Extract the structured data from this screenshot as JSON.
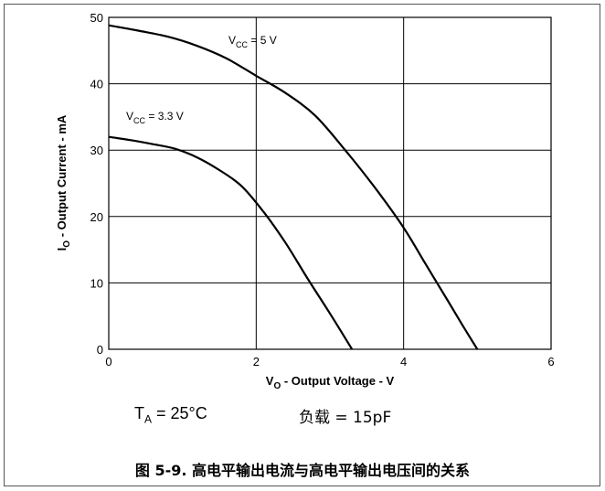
{
  "chart_data": {
    "type": "line",
    "title": "",
    "xlabel": "V",
    "xlabel_sub": "O",
    "xlabel_rest": " - Output Voltage - V",
    "ylabel": "I",
    "ylabel_sub": "O",
    "ylabel_rest": " - Output Current - mA",
    "xlim": [
      0,
      6
    ],
    "ylim": [
      0,
      50
    ],
    "xticks": [
      "0",
      "2",
      "4",
      "6"
    ],
    "yticks": [
      "0",
      "10",
      "20",
      "30",
      "40",
      "50"
    ],
    "grid": true,
    "series": [
      {
        "name": "V",
        "name_sub": "CC",
        "name_rest": " = 5 V",
        "x": [
          0,
          0.4,
          0.8,
          1.2,
          1.6,
          2.0,
          2.4,
          2.8,
          3.2,
          3.6,
          4.0,
          4.3,
          4.6,
          4.8,
          5.0
        ],
        "y": [
          48.8,
          48.0,
          47.1,
          45.7,
          43.8,
          41.2,
          38.6,
          35.2,
          30.1,
          24.5,
          18.3,
          12.8,
          7.3,
          3.6,
          0
        ]
      },
      {
        "name": "V",
        "name_sub": "CC",
        "name_rest": " = 3.3 V",
        "x": [
          0,
          0.3,
          0.6,
          0.9,
          1.2,
          1.5,
          1.8,
          2.1,
          2.4,
          2.7,
          3.0,
          3.3
        ],
        "y": [
          32.0,
          31.5,
          30.9,
          30.2,
          28.9,
          27.0,
          24.6,
          20.7,
          16.0,
          10.6,
          5.4,
          0
        ]
      }
    ]
  },
  "conditions": {
    "ta_main": "T",
    "ta_sub": "A",
    "ta_rest": " = 25°C",
    "load": "负载 = 15pF"
  },
  "caption": "图 5-9. 高电平输出电流与高电平输出电压间的关系"
}
